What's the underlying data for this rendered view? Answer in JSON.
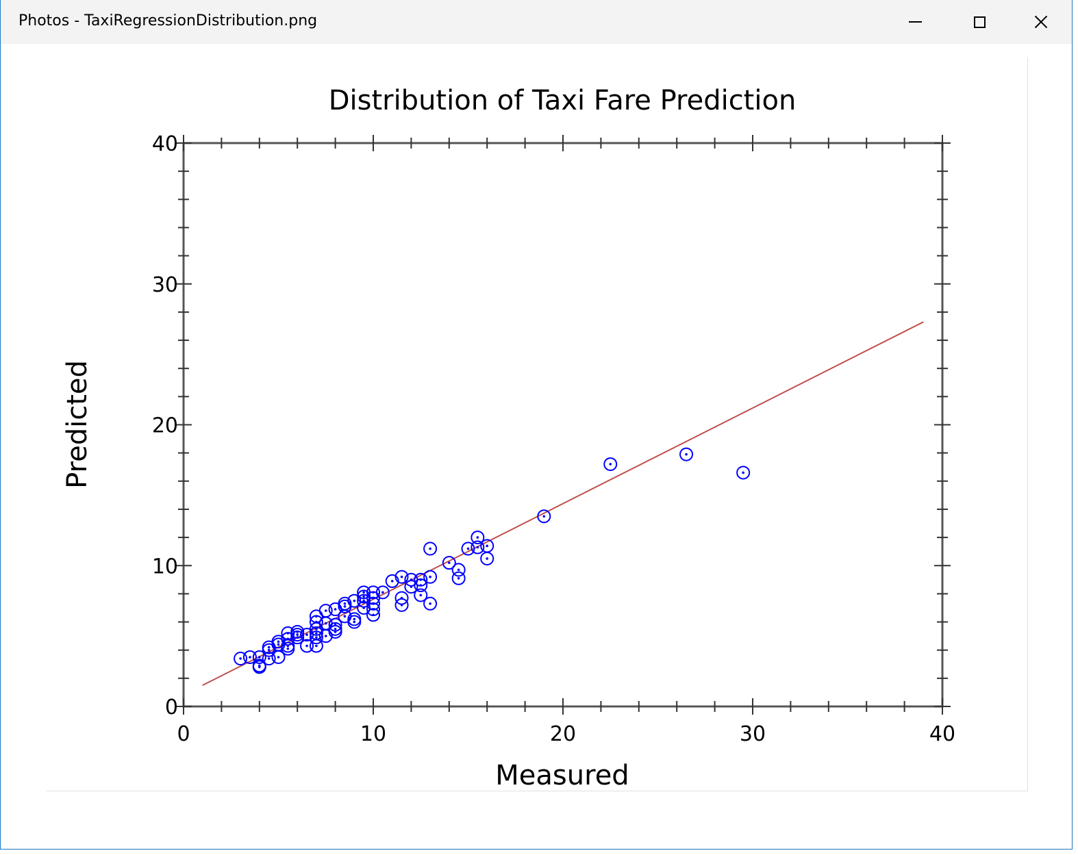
{
  "window": {
    "title": "Photos - TaxiRegressionDistribution.png",
    "controls": {
      "minimize_icon": "minimize-icon",
      "maximize_icon": "maximize-icon",
      "close_icon": "close-icon"
    },
    "border_color": "#1a78c2",
    "titlebar_color": "#f3f3f3"
  },
  "chart_data": {
    "type": "scatter",
    "title": "Distribution of Taxi Fare Prediction",
    "xlabel": "Measured",
    "ylabel": "Predicted",
    "xlim": [
      0,
      40
    ],
    "ylim": [
      0,
      40
    ],
    "x_ticks": [
      "0",
      "10",
      "20",
      "30",
      "40"
    ],
    "y_ticks": [
      "0",
      "10",
      "20",
      "30",
      "40"
    ],
    "grid": false,
    "marker_color": "#0000ff",
    "line_color": "#c0504d",
    "series": [
      {
        "x": [
          3,
          3.5,
          4,
          4,
          4,
          4.5,
          4.5,
          4.5,
          5,
          5,
          5,
          5.5,
          5.5,
          5.5,
          5.5,
          6,
          6,
          6,
          6.5,
          6.5,
          7,
          7,
          7,
          7,
          7,
          7,
          7.5,
          7.5,
          7.5,
          8,
          8,
          8,
          8,
          8.5,
          8.5,
          8.5,
          9,
          9,
          9,
          9.5,
          9.5,
          9.5,
          9.5,
          10,
          10,
          10,
          10,
          10,
          10.5,
          11,
          11.5,
          11.5,
          11.5,
          12,
          12,
          12.5,
          12.5,
          12.5,
          13,
          13,
          13,
          14,
          14.5,
          14.5,
          15,
          15.5,
          15.5,
          16,
          16,
          19,
          22.5,
          26.5,
          29.5
        ],
        "y": [
          3.4,
          3.5,
          3.5,
          2.8,
          2.9,
          4.2,
          4.0,
          3.4,
          4.6,
          4.4,
          3.5,
          5.2,
          4.8,
          4.3,
          4.1,
          5.3,
          5.1,
          4.9,
          5.1,
          4.3,
          6.4,
          6.0,
          5.5,
          5.2,
          4.9,
          4.3,
          6.8,
          5.9,
          5.0,
          6.9,
          5.8,
          5.5,
          5.3,
          7.3,
          7.1,
          6.4,
          7.5,
          6.2,
          6.0,
          8.1,
          7.8,
          7.5,
          7.0,
          8.1,
          7.7,
          7.3,
          6.9,
          6.5,
          8.1,
          8.9,
          9.2,
          7.7,
          7.2,
          9.0,
          8.5,
          9.0,
          8.6,
          7.9,
          11.2,
          9.2,
          7.3,
          10.2,
          9.7,
          9.1,
          11.2,
          12.0,
          11.3,
          11.4,
          10.5,
          13.5,
          17.2,
          17.9,
          16.6
        ]
      },
      {
        "x": [
          1,
          39
        ],
        "y": [
          1.5,
          27.3
        ]
      }
    ]
  }
}
